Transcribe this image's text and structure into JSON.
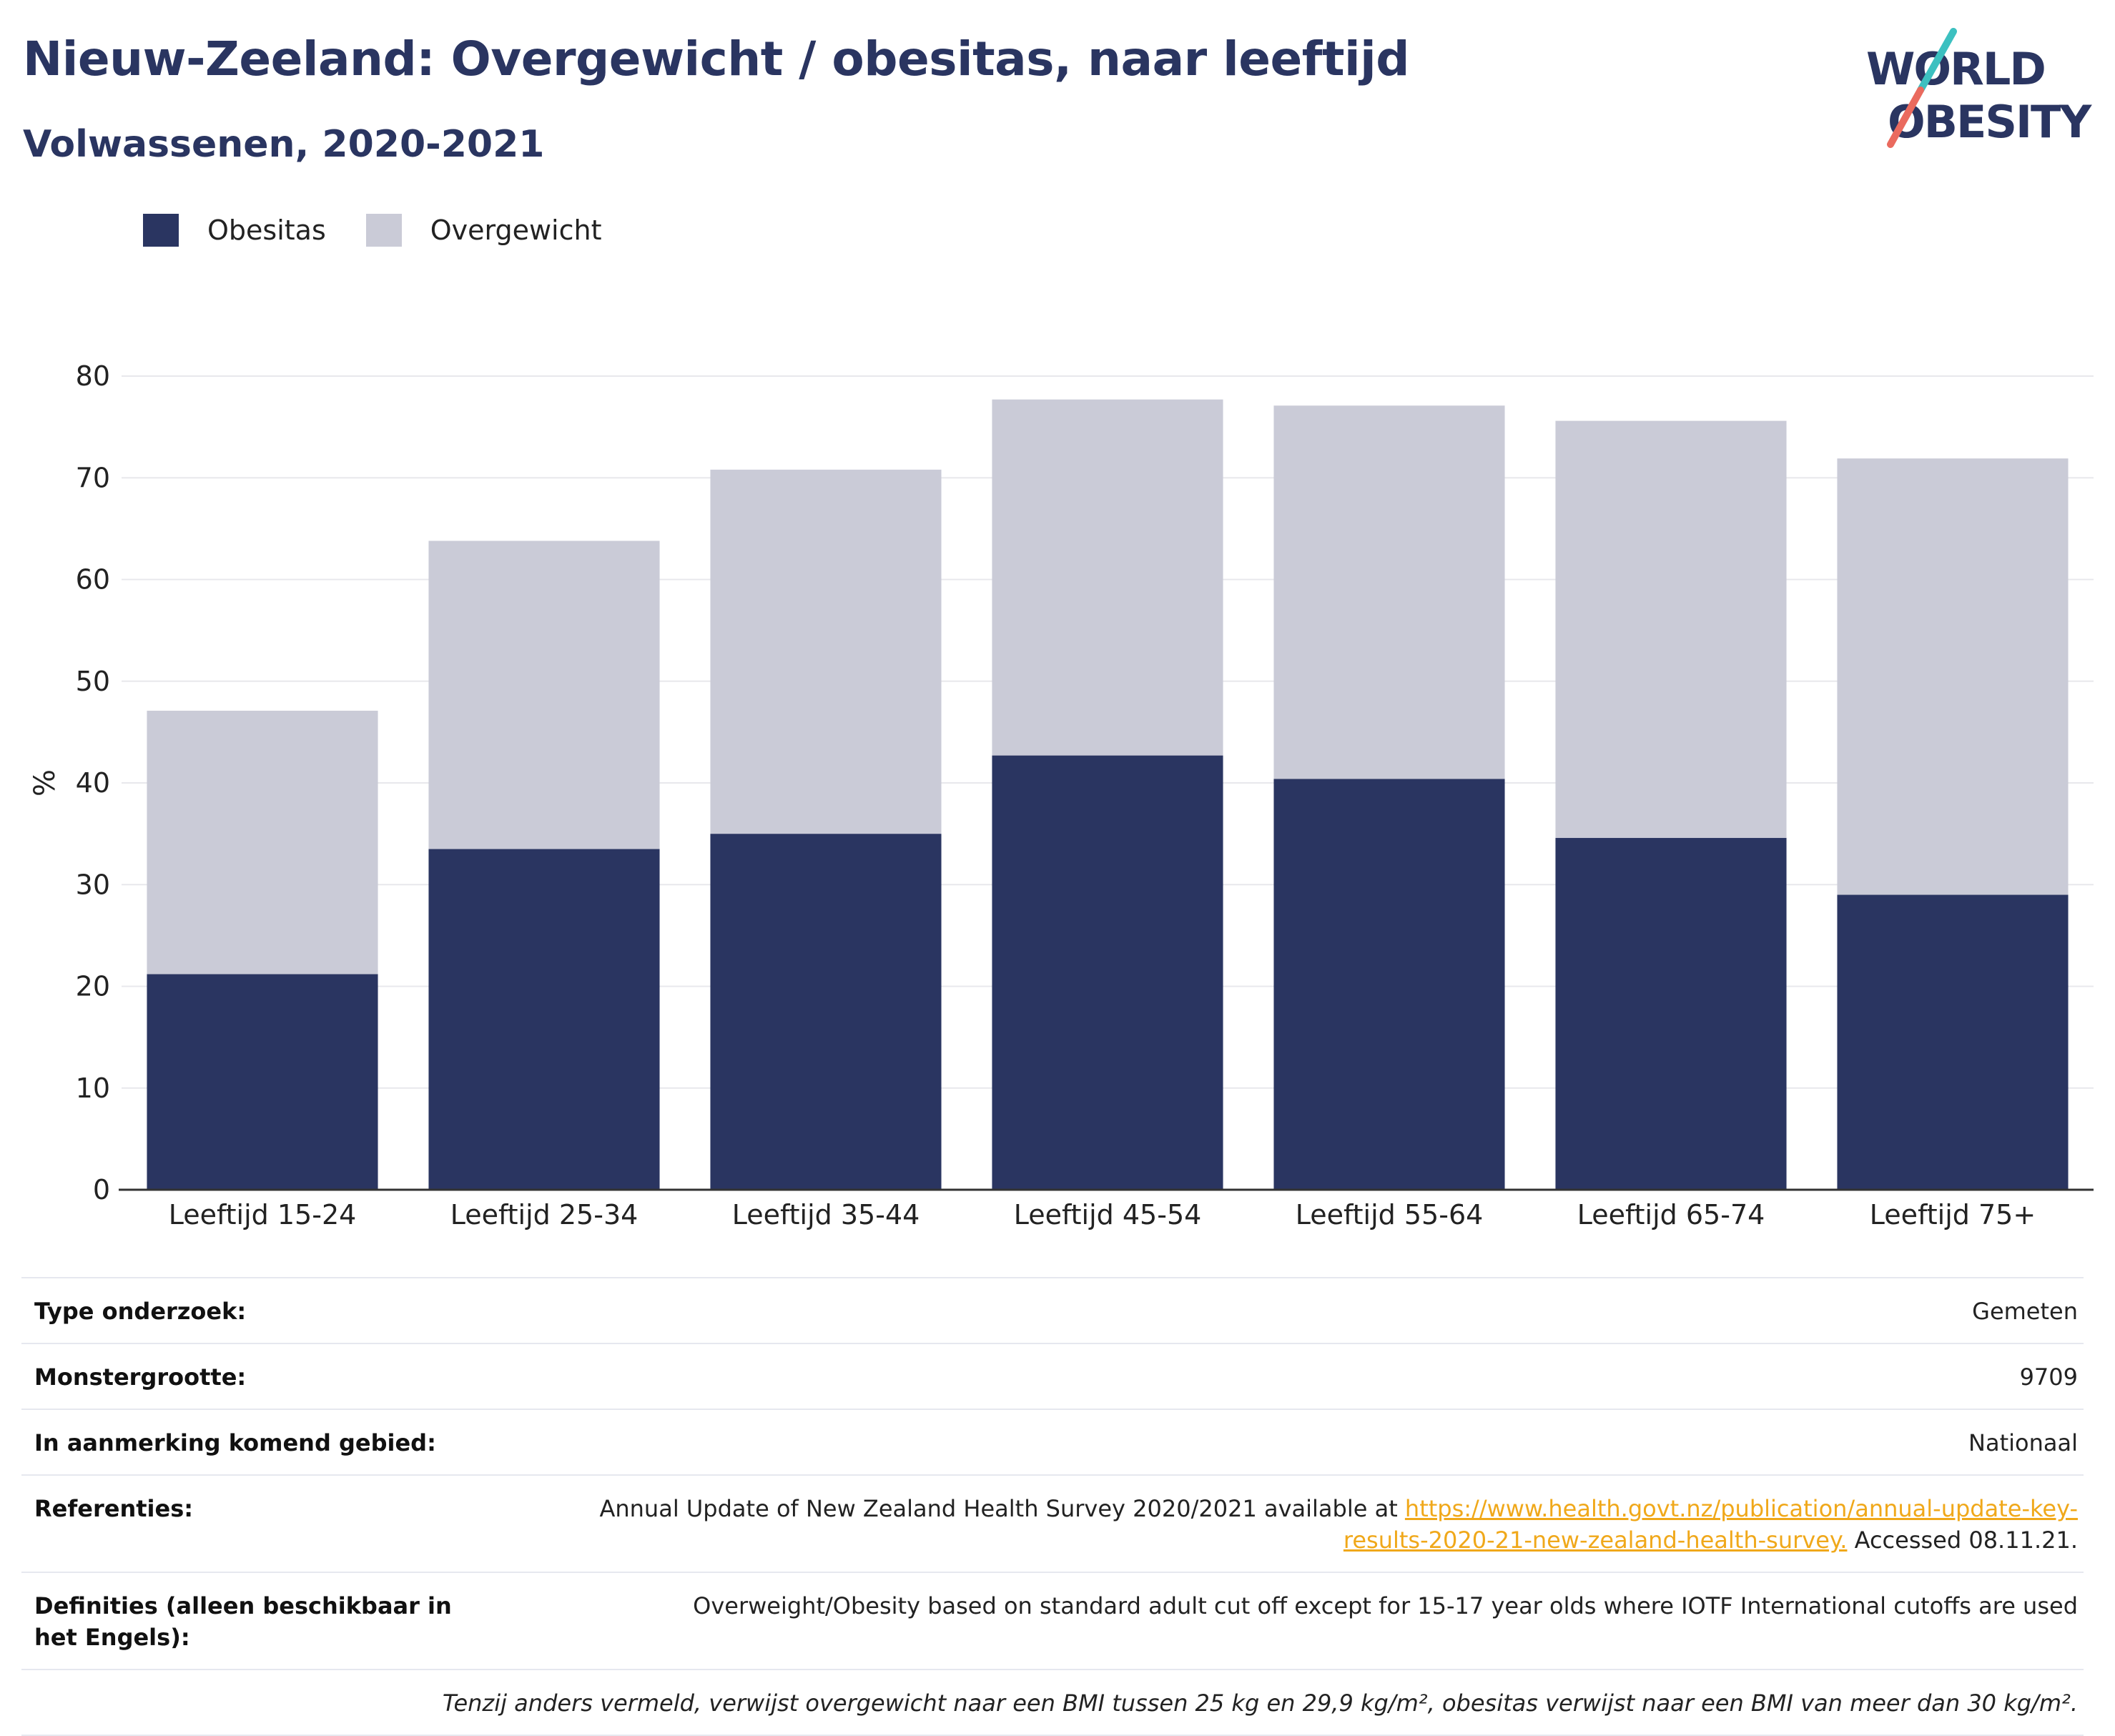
{
  "title": "Nieuw-Zeeland: Overgewicht / obesitas, naar leeftijd",
  "subtitle": "Volwassenen, 2020-2021",
  "logo": {
    "line1": "WORLD",
    "line2": "OBESITY"
  },
  "colors": {
    "obesitas": "#2a3561",
    "overgewicht": "#cacbd7",
    "accent_link": "#f0a81a",
    "logo_teal": "#3cc0c0",
    "logo_coral": "#ea6a5e"
  },
  "legend": {
    "obesitas": "Obesitas",
    "overgewicht": "Overgewicht"
  },
  "chart_data": {
    "type": "bar",
    "stacked": true,
    "categories": [
      "Leeftijd 15-24",
      "Leeftijd 25-34",
      "Leeftijd 35-44",
      "Leeftijd 45-54",
      "Leeftijd 55-64",
      "Leeftijd 65-74",
      "Leeftijd 75+"
    ],
    "series": [
      {
        "name": "Obesitas",
        "values": [
          21.2,
          33.5,
          35.0,
          42.7,
          40.4,
          34.6,
          29.0
        ]
      },
      {
        "name": "Overgewicht",
        "values": [
          25.9,
          30.3,
          35.8,
          35.0,
          36.7,
          41.0,
          42.9
        ]
      }
    ],
    "ylabel": "%",
    "ylim": [
      0,
      80
    ],
    "yticks": [
      0,
      10,
      20,
      30,
      40,
      50,
      60,
      70,
      80
    ],
    "grid": true,
    "legend_position": "top-left"
  },
  "info": {
    "type_label": "Type onderzoek:",
    "type_value": "Gemeten",
    "sample_label": "Monstergrootte:",
    "sample_value": "9709",
    "area_label": "In aanmerking komend gebied:",
    "area_value": "Nationaal",
    "ref_label": "Referenties:",
    "ref_text": "Annual Update of New Zealand Health Survey 2020/2021 available at ",
    "ref_link_1": "https://www.health.govt.nz/publication/annual-update-key-",
    "ref_link_2": "results-2020-21-new-zealand-health-survey.",
    "ref_accessed": " Accessed 08.11.21.",
    "def_label": "Definities (alleen beschikbaar in het Engels):",
    "def_value": "Overweight/Obesity based on standard adult cut off except for 15-17 year olds where IOTF International cutoffs are used",
    "note": "Tenzij anders vermeld, verwijst overgewicht naar een BMI tussen 25 kg en 29,9 kg/m², obesitas verwijst naar een BMI van meer dan 30 kg/m²."
  }
}
